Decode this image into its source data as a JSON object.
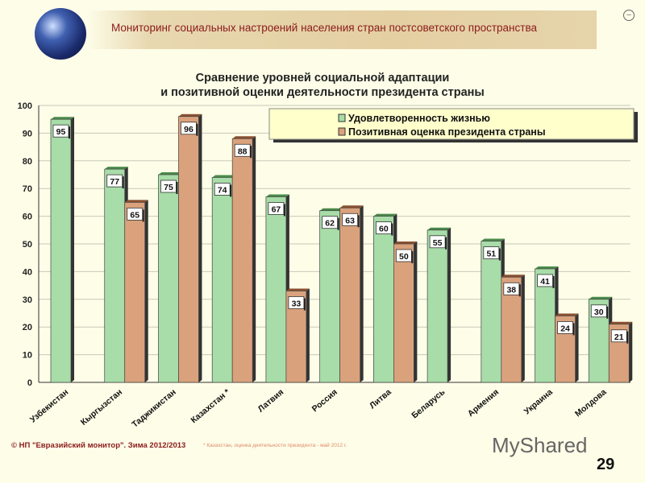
{
  "header": {
    "title": "Мониторинг социальных настроений населения стран постсоветского пространства",
    "corner_icon": "minus-circle-icon"
  },
  "chart_data": {
    "type": "bar",
    "title": [
      "Сравнение уровней социальной адаптации",
      "и позитивной оценки деятельности президента страны"
    ],
    "categories": [
      "Узбекистан",
      "Кыргызстан",
      "Таджикистан",
      "Казахстан *",
      "Латвия",
      "Россия",
      "Литва",
      "Беларусь",
      "Армения",
      "Украина",
      "Молдова"
    ],
    "series": [
      {
        "name": "Удовлетворенность жизнью",
        "color": "#a8dca8",
        "values": [
          95,
          77,
          75,
          74,
          67,
          62,
          60,
          55,
          51,
          41,
          30
        ]
      },
      {
        "name": "Позитивная оценка президента страны",
        "color": "#d9a27c",
        "values": [
          null,
          65,
          96,
          88,
          33,
          63,
          50,
          null,
          38,
          24,
          21
        ]
      }
    ],
    "ylim": [
      0,
      100
    ],
    "yticks": [
      0,
      10,
      20,
      30,
      40,
      50,
      60,
      70,
      80,
      90,
      100
    ],
    "grid": true,
    "legend": "top-right"
  },
  "footer": {
    "copyright": "© НП \"Евразийский монитор\". Зима 2012/2013",
    "footnote": "* Казахстан, оценка деятельности президента - май 2012 г.",
    "logo": "MyShared",
    "page": "29"
  }
}
